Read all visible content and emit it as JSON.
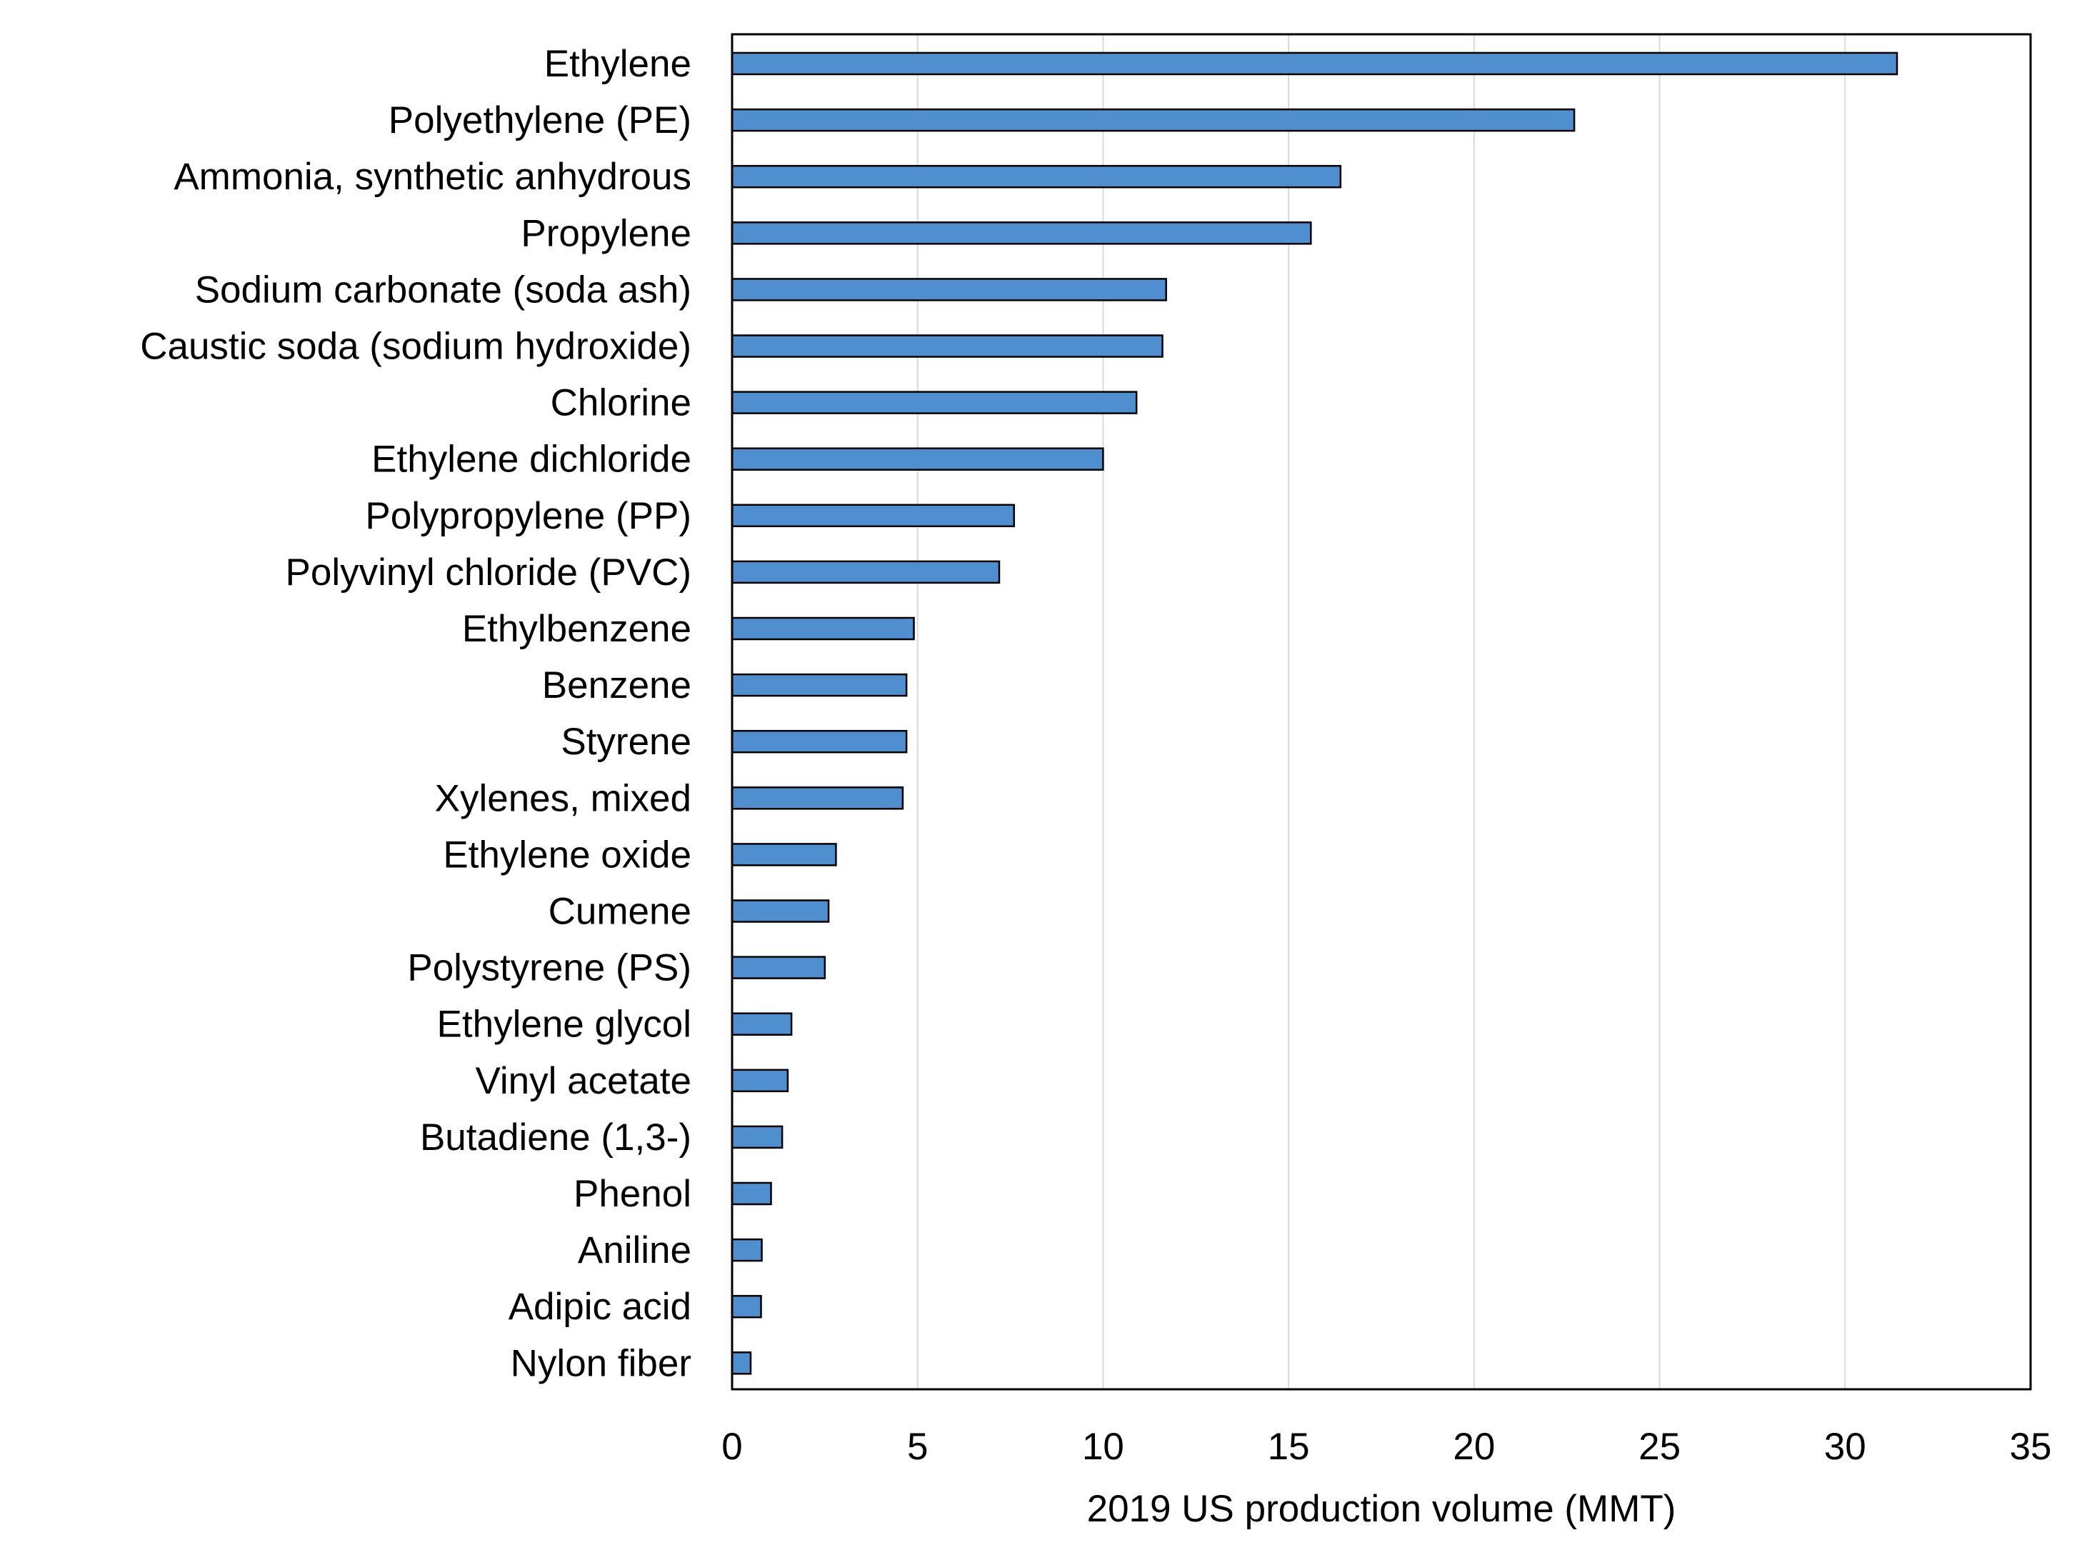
{
  "colors": {
    "bar_fill": "#4F8FD0",
    "bar_stroke": "#000000",
    "grid": "#D9D9D9",
    "frame": "#000000"
  },
  "chart_data": {
    "type": "bar",
    "orientation": "horizontal",
    "categories": [
      "Ethylene",
      "Polyethylene (PE)",
      "Ammonia, synthetic anhydrous",
      "Propylene",
      "Sodium carbonate (soda ash)",
      "Caustic soda (sodium hydroxide)",
      "Chlorine",
      "Ethylene dichloride",
      "Polypropylene (PP)",
      "Polyvinyl chloride (PVC)",
      "Ethylbenzene",
      "Benzene",
      "Styrene",
      "Xylenes, mixed",
      "Ethylene oxide",
      "Cumene",
      "Polystyrene (PS)",
      "Ethylene glycol",
      "Vinyl acetate",
      "Butadiene (1,3-)",
      "Phenol",
      "Aniline",
      "Adipic acid",
      "Nylon fiber"
    ],
    "values": [
      31.4,
      22.7,
      16.4,
      15.6,
      11.7,
      11.6,
      10.9,
      10.0,
      7.6,
      7.2,
      4.9,
      4.7,
      4.7,
      4.6,
      2.8,
      2.6,
      2.5,
      1.6,
      1.5,
      1.35,
      1.05,
      0.8,
      0.78,
      0.5
    ],
    "xlabel": "2019 US production volume (MMT)",
    "ylabel": "",
    "xlim": [
      0,
      35
    ],
    "xticks": [
      "0",
      "5",
      "10",
      "15",
      "20",
      "25",
      "30",
      "35"
    ],
    "grid": "vertical",
    "legend": "none"
  }
}
